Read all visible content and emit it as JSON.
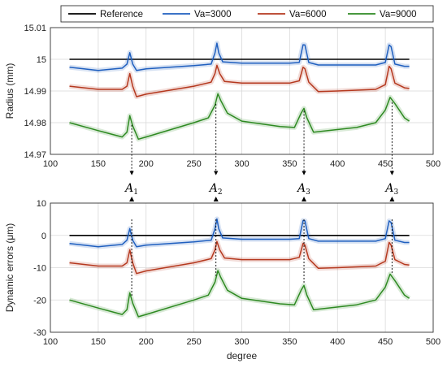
{
  "chart_data": [
    {
      "type": "line",
      "ylabel": "Radius (mm)",
      "xlabel": "",
      "xlim": [
        100,
        500
      ],
      "ylim": [
        14.97,
        15.01
      ],
      "xticks": [
        "100",
        "150",
        "200",
        "250",
        "300",
        "350",
        "400",
        "450",
        "500"
      ],
      "yticks": [
        "14.97",
        "14.98",
        "14.99",
        "15",
        "15.01"
      ],
      "grid": true,
      "legend": {
        "placement": "top",
        "entries": [
          "Reference",
          "Va=3000",
          "Va=6000",
          "Va=9000"
        ]
      },
      "series": [
        {
          "name": "Reference",
          "color": "#000000",
          "x": [
            120,
            475
          ],
          "y": [
            15.0,
            15.0
          ]
        },
        {
          "name": "Va=3000",
          "color": "#1f5fbf",
          "x": [
            120,
            150,
            175,
            180,
            183,
            186,
            190,
            200,
            250,
            268,
            272,
            274,
            276,
            280,
            300,
            350,
            360,
            364,
            366,
            370,
            380,
            400,
            440,
            450,
            454,
            456,
            460,
            470,
            475
          ],
          "y": [
            14.9975,
            14.9965,
            14.9972,
            14.9985,
            15.0021,
            14.9985,
            14.9965,
            14.997,
            14.998,
            14.9985,
            15.002,
            15.0051,
            15.002,
            14.9992,
            14.9988,
            14.9988,
            14.999,
            15.0046,
            15.0045,
            14.999,
            14.9982,
            14.9982,
            14.9982,
            14.999,
            15.0045,
            15.004,
            14.9985,
            14.9978,
            14.9978
          ]
        },
        {
          "name": "Va=6000",
          "color": "#b5391f",
          "x": [
            120,
            150,
            175,
            180,
            183,
            186,
            190,
            200,
            250,
            268,
            272,
            274,
            277,
            282,
            300,
            350,
            360,
            364,
            366,
            370,
            380,
            400,
            440,
            450,
            454,
            456,
            460,
            470,
            475
          ],
          "y": [
            14.9915,
            14.9905,
            14.9905,
            14.9915,
            14.9955,
            14.9915,
            14.9882,
            14.989,
            14.9915,
            14.9928,
            14.9955,
            14.9981,
            14.9955,
            14.993,
            14.9925,
            14.9925,
            14.9932,
            14.9975,
            14.997,
            14.9928,
            14.9898,
            14.99,
            14.9905,
            14.992,
            14.9978,
            14.997,
            14.9925,
            14.991,
            14.9908
          ]
        },
        {
          "name": "Va=9000",
          "color": "#2e8a22",
          "x": [
            120,
            150,
            175,
            180,
            183,
            186,
            192,
            200,
            250,
            265,
            272,
            275,
            278,
            285,
            300,
            340,
            355,
            362,
            365,
            368,
            375,
            390,
            420,
            440,
            450,
            455,
            460,
            470,
            475
          ],
          "y": [
            14.98,
            14.9775,
            14.9755,
            14.977,
            14.9822,
            14.979,
            14.9748,
            14.9755,
            14.98,
            14.9815,
            14.9855,
            14.9891,
            14.987,
            14.983,
            14.9805,
            14.9788,
            14.9785,
            14.983,
            14.9845,
            14.9815,
            14.977,
            14.9775,
            14.9785,
            14.98,
            14.984,
            14.988,
            14.986,
            14.9815,
            14.9805
          ]
        }
      ]
    },
    {
      "type": "line",
      "ylabel": "Dynamic errors (μm)",
      "xlabel": "degree",
      "xlim": [
        100,
        500
      ],
      "ylim": [
        -30,
        10
      ],
      "xticks": [
        "100",
        "150",
        "200",
        "250",
        "300",
        "350",
        "400",
        "450",
        "500"
      ],
      "yticks": [
        "-30",
        "-20",
        "-10",
        "0",
        "10"
      ],
      "grid": true,
      "series": [
        {
          "name": "Reference",
          "color": "#000000",
          "x": [
            120,
            475
          ],
          "y": [
            0,
            0
          ]
        },
        {
          "name": "Va=3000",
          "color": "#1f5fbf",
          "x": [
            120,
            150,
            175,
            180,
            183,
            186,
            190,
            200,
            250,
            268,
            272,
            274,
            276,
            280,
            300,
            350,
            360,
            364,
            366,
            370,
            380,
            400,
            440,
            450,
            454,
            456,
            460,
            470,
            475
          ],
          "y": [
            -2.5,
            -3.5,
            -2.8,
            -1.5,
            2.1,
            -1.5,
            -3.5,
            -3,
            -2,
            -1.5,
            2,
            5.1,
            2,
            -0.8,
            -1.2,
            -1.2,
            -1,
            4.6,
            4.5,
            -1,
            -1.8,
            -1.8,
            -1.8,
            -1,
            4.5,
            4,
            -1.5,
            -2.2,
            -2.2
          ]
        },
        {
          "name": "Va=6000",
          "color": "#b5391f",
          "x": [
            120,
            150,
            175,
            180,
            183,
            186,
            190,
            200,
            250,
            268,
            272,
            274,
            277,
            282,
            300,
            350,
            360,
            364,
            366,
            370,
            380,
            400,
            440,
            450,
            454,
            456,
            460,
            470,
            475
          ],
          "y": [
            -8.5,
            -9.5,
            -9.5,
            -8.5,
            -4.5,
            -8.5,
            -11.8,
            -11,
            -8.5,
            -7.2,
            -4.5,
            -1.9,
            -4.5,
            -7,
            -7.5,
            -7.5,
            -6.8,
            -2.5,
            -3,
            -7.2,
            -10.2,
            -10,
            -9.5,
            -8,
            -2.2,
            -3,
            -7.5,
            -9,
            -9.2
          ]
        },
        {
          "name": "Va=9000",
          "color": "#2e8a22",
          "x": [
            120,
            150,
            175,
            180,
            183,
            186,
            192,
            200,
            250,
            265,
            272,
            275,
            278,
            285,
            300,
            340,
            355,
            362,
            365,
            368,
            375,
            390,
            420,
            440,
            450,
            455,
            460,
            470,
            475
          ],
          "y": [
            -20,
            -22.5,
            -24.5,
            -23,
            -17.8,
            -21,
            -25.2,
            -24.5,
            -20,
            -18.5,
            -14.5,
            -10.9,
            -13,
            -17,
            -19.5,
            -21.2,
            -21.5,
            -17,
            -15.5,
            -18.5,
            -23,
            -22.5,
            -21.5,
            -20,
            -16,
            -12,
            -14,
            -18.5,
            -19.5
          ]
        }
      ]
    }
  ],
  "annotations": {
    "arrows_x": [
      185,
      273,
      365,
      457
    ],
    "labels": [
      {
        "main": "A",
        "sub": "1"
      },
      {
        "main": "A",
        "sub": "2"
      },
      {
        "main": "A",
        "sub": "3"
      },
      {
        "main": "A",
        "sub": "3"
      }
    ]
  }
}
